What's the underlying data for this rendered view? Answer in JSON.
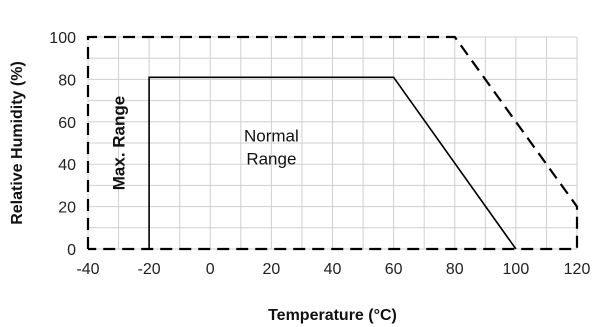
{
  "chart_data": {
    "type": "line",
    "xlabel": "Temperature (°C)",
    "ylabel": "Relative Humidity (%)",
    "xlim": [
      -40,
      120
    ],
    "ylim": [
      0,
      100
    ],
    "x_ticks": [
      -40,
      -20,
      0,
      20,
      40,
      60,
      80,
      100,
      120
    ],
    "y_ticks": [
      0,
      20,
      40,
      60,
      80,
      100
    ],
    "grid": true,
    "series": [
      {
        "style": "solid",
        "color": "#000000",
        "points": [
          [
            -20,
            0
          ],
          [
            -20,
            81
          ],
          [
            60,
            81
          ],
          [
            100,
            0
          ]
        ]
      },
      {
        "style": "dashed",
        "color": "#000000",
        "points": [
          [
            -40,
            0
          ],
          [
            -40,
            100
          ],
          [
            80,
            100
          ],
          [
            120,
            20
          ],
          [
            120,
            0
          ],
          [
            -40,
            0
          ]
        ]
      }
    ],
    "annotations": [
      {
        "text_lines": [
          "Max. Range"
        ],
        "x": -30,
        "y": 50,
        "rotate": -90,
        "bold": true
      },
      {
        "text_lines": [
          "Normal",
          "Range"
        ],
        "x": 20,
        "y": 48,
        "rotate": 0,
        "bold": false
      }
    ]
  }
}
